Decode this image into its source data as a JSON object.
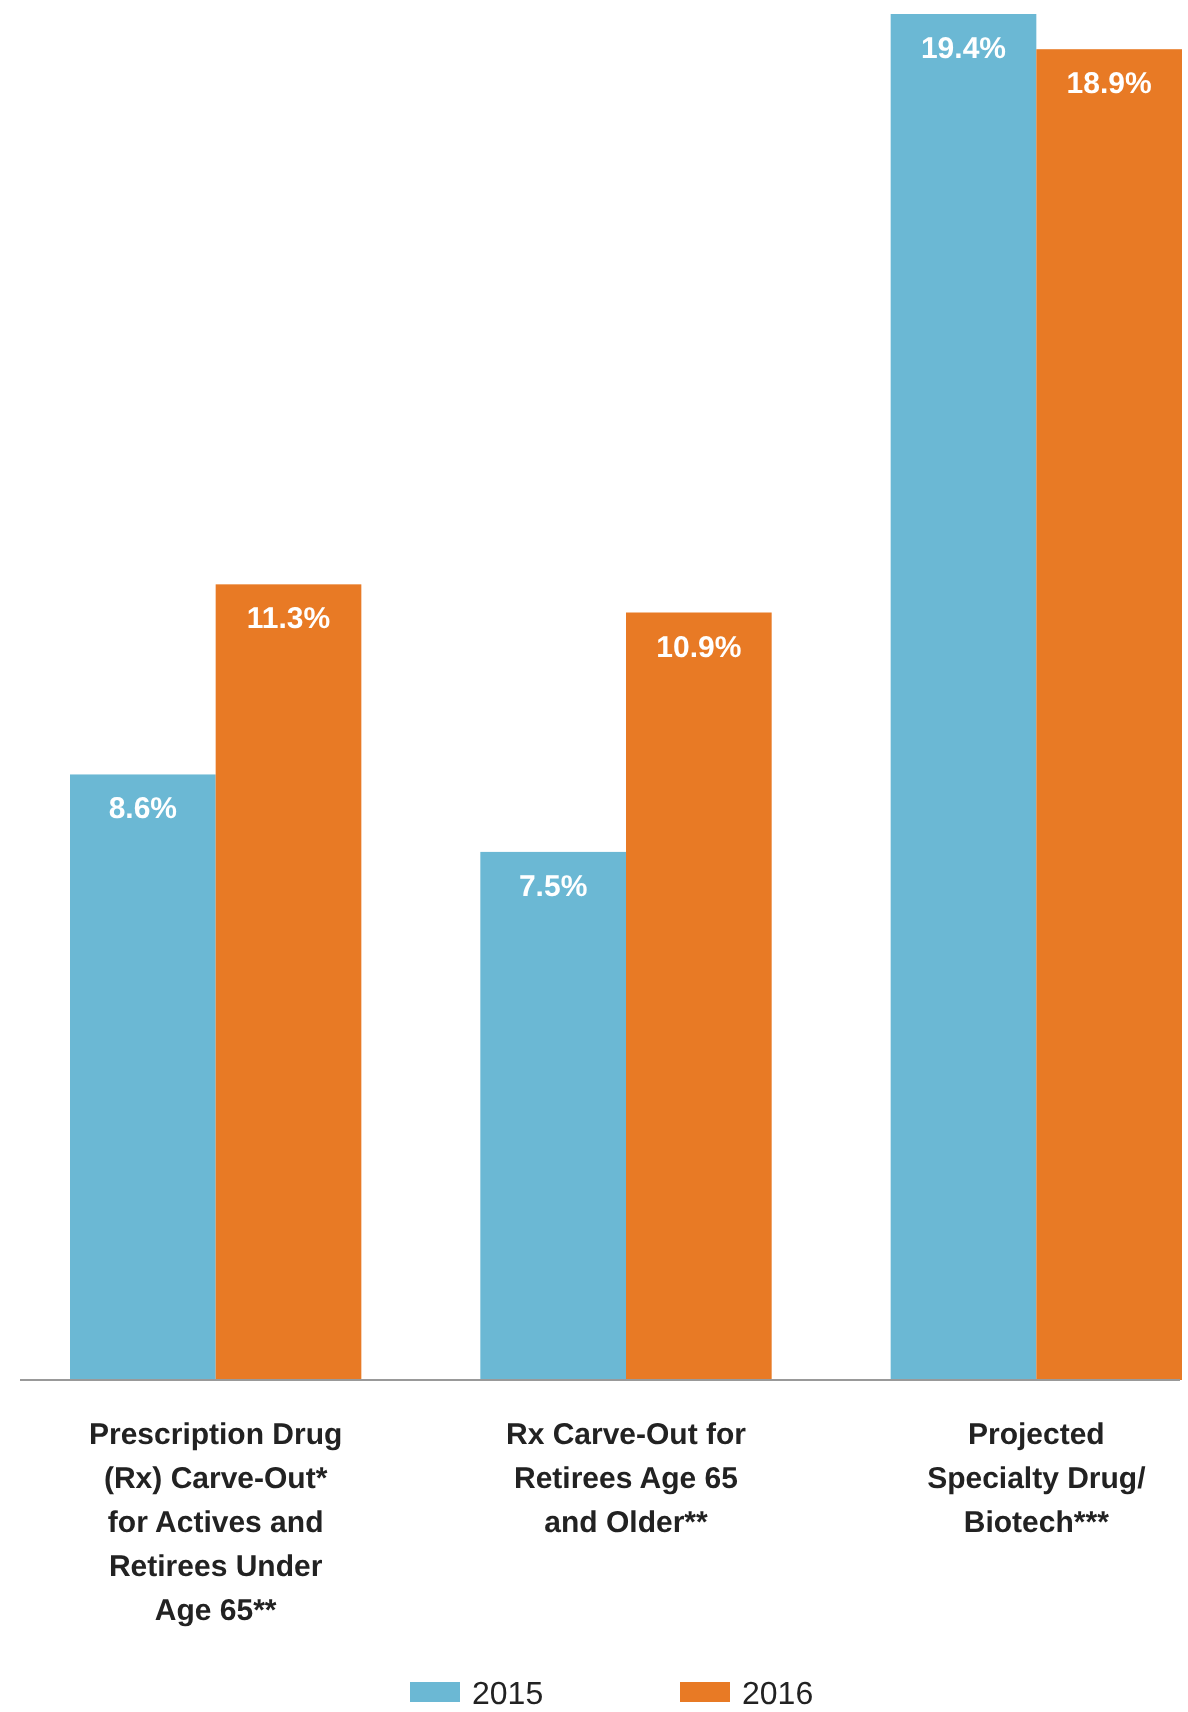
{
  "chart_data": {
    "type": "bar",
    "categories": [
      "Prescription Drug (Rx) Carve-Out* for Actives and Retirees Under Age 65**",
      "Rx Carve-Out for Retirees Age 65 and Older**",
      "Projected Specialty Drug/Biotech***"
    ],
    "series": [
      {
        "name": "2015",
        "color": "#6bb8d4",
        "values": [
          8.6,
          7.5,
          19.4
        ],
        "value_labels": [
          "8.6%",
          "7.5%",
          "19.4%"
        ]
      },
      {
        "name": "2016",
        "color": "#e87a25",
        "values": [
          11.3,
          10.9,
          18.9
        ],
        "value_labels": [
          "11.3%",
          "10.9%",
          "18.9%"
        ]
      }
    ],
    "legend": "bottom"
  }
}
